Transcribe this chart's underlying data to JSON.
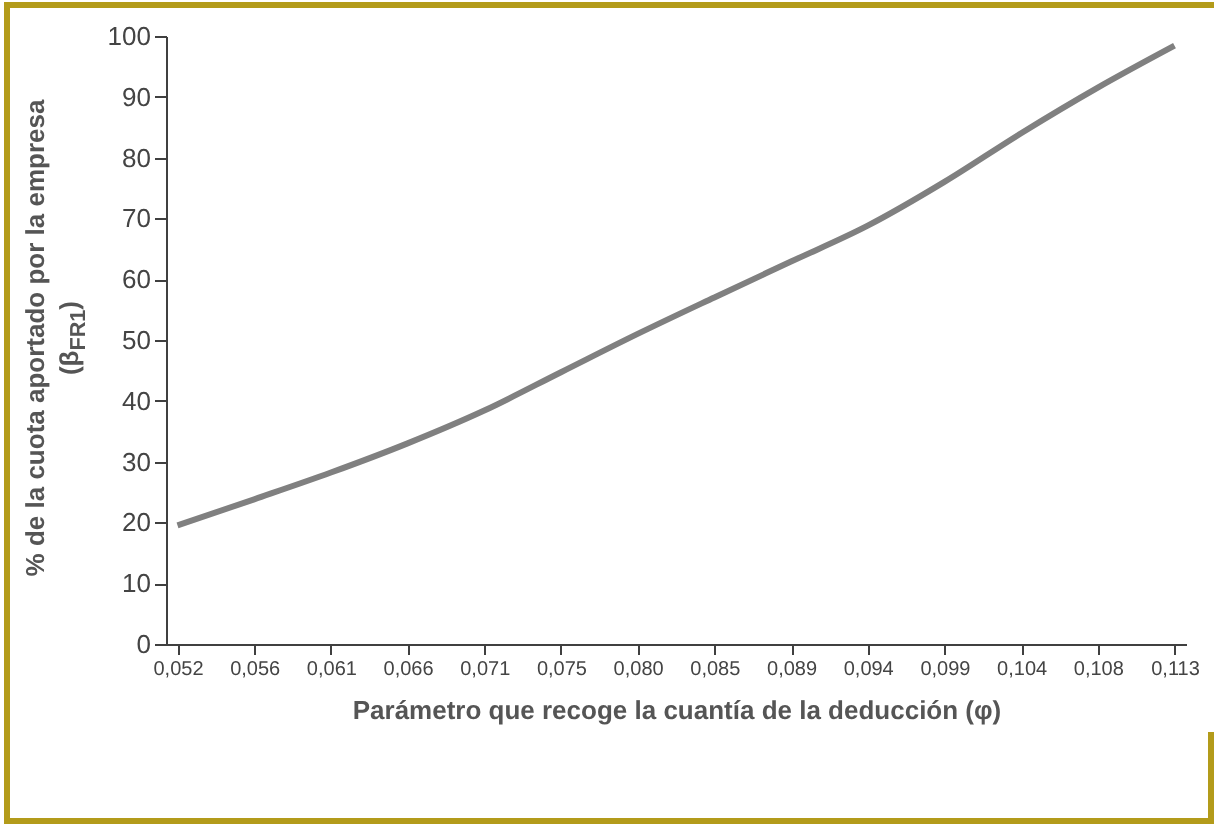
{
  "chart_data": {
    "type": "line",
    "xlabel": "Parámetro que recoge la cuantía de la deducción (φ)",
    "ylabel": "% de la cuota aportado por la empresa\n(β$_{FR1}$)",
    "categories": [
      "0,052",
      "0,056",
      "0,061",
      "0,066",
      "0,071",
      "0,075",
      "0,080",
      "0,085",
      "0,089",
      "0,094",
      "0,099",
      "0,104",
      "0,108",
      "0,113"
    ],
    "series": [
      {
        "color": "#808080",
        "values": [
          19.5,
          23.8,
          28.2,
          33,
          38.4,
          44.7,
          51,
          57,
          62.9,
          68.8,
          76,
          84,
          91.5,
          98.4
        ]
      }
    ],
    "ylim": [
      0,
      100
    ],
    "yticks": [
      0,
      10,
      20,
      30,
      40,
      50,
      60,
      70,
      80,
      90,
      100
    ],
    "grid": false,
    "legend": false,
    "marker": "none",
    "line_style": "solid"
  }
}
